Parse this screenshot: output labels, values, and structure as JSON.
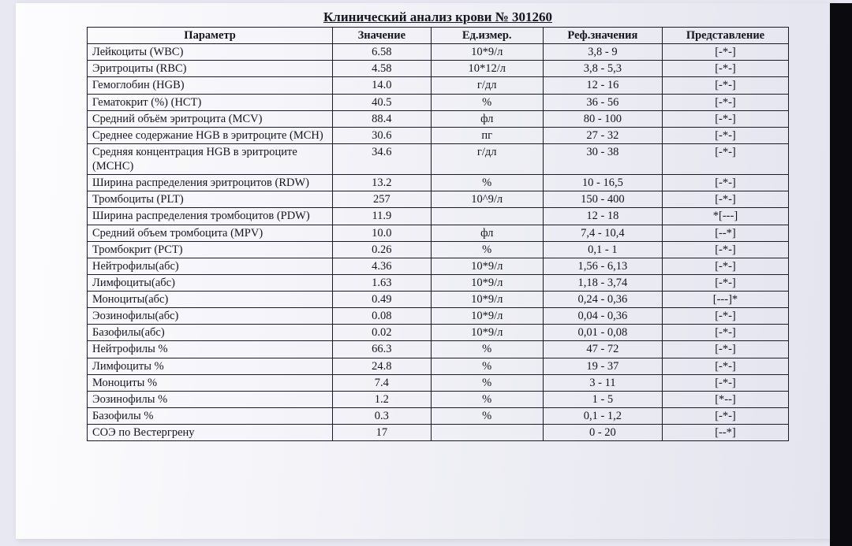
{
  "title": "Клинический анализ крови № 301260",
  "columns": {
    "param": "Параметр",
    "value": "Значение",
    "unit": "Ед.измер.",
    "ref": "Реф.значения",
    "rep": "Представление"
  },
  "rows": [
    {
      "param": "Лейкоциты (WBC)",
      "value": "6.58",
      "unit": "10*9/л",
      "ref": "3,8 - 9",
      "rep": "[-*-]"
    },
    {
      "param": "Эритроциты (RBC)",
      "value": "4.58",
      "unit": "10*12/л",
      "ref": "3,8 - 5,3",
      "rep": "[-*-]"
    },
    {
      "param": "Гемоглобин (HGB)",
      "value": "14.0",
      "unit": "г/дл",
      "ref": "12 - 16",
      "rep": "[-*-]"
    },
    {
      "param": "Гематокрит (%) (HCT)",
      "value": "40.5",
      "unit": "%",
      "ref": "36 - 56",
      "rep": "[-*-]"
    },
    {
      "param": "Средний объём эритроцита (MCV)",
      "value": "88.4",
      "unit": "фл",
      "ref": "80 - 100",
      "rep": "[-*-]"
    },
    {
      "param": "Среднее содержание HGB в эритроците (MCH)",
      "value": "30.6",
      "unit": "пг",
      "ref": "27 - 32",
      "rep": "[-*-]"
    },
    {
      "param": "Средняя концентрация HGB в эритроците (MCHC)",
      "value": "34.6",
      "unit": "г/дл",
      "ref": "30 - 38",
      "rep": "[-*-]"
    },
    {
      "param": "Ширина распределения эритроцитов (RDW)",
      "value": "13.2",
      "unit": "%",
      "ref": "10 - 16,5",
      "rep": "[-*-]"
    },
    {
      "param": "Тромбоциты (PLT)",
      "value": "257",
      "unit": "10^9/л",
      "ref": "150 - 400",
      "rep": "[-*-]"
    },
    {
      "param": "Ширина распределения тромбоцитов (PDW)",
      "value": "11.9",
      "unit": "",
      "ref": "12 - 18",
      "rep": "*[---]"
    },
    {
      "param": "Средний объем тромбоцита (MPV)",
      "value": "10.0",
      "unit": "фл",
      "ref": "7,4 - 10,4",
      "rep": "[--*]"
    },
    {
      "param": "Тромбокрит (PCT)",
      "value": "0.26",
      "unit": "%",
      "ref": "0,1 - 1",
      "rep": "[-*-]"
    },
    {
      "param": "Нейтрофилы(абс)",
      "value": "4.36",
      "unit": "10*9/л",
      "ref": "1,56 - 6,13",
      "rep": "[-*-]"
    },
    {
      "param": "Лимфоциты(абс)",
      "value": "1.63",
      "unit": "10*9/л",
      "ref": "1,18 - 3,74",
      "rep": "[-*-]"
    },
    {
      "param": "Моноциты(абс)",
      "value": "0.49",
      "unit": "10*9/л",
      "ref": "0,24 - 0,36",
      "rep": "[---]*"
    },
    {
      "param": "Эозинофилы(абс)",
      "value": "0.08",
      "unit": "10*9/л",
      "ref": "0,04 - 0,36",
      "rep": "[-*-]"
    },
    {
      "param": "Базофилы(абс)",
      "value": "0.02",
      "unit": "10*9/л",
      "ref": "0,01 - 0,08",
      "rep": "[-*-]"
    },
    {
      "param": "Нейтрофилы %",
      "value": "66.3",
      "unit": "%",
      "ref": "47 - 72",
      "rep": "[-*-]"
    },
    {
      "param": "Лимфоциты %",
      "value": "24.8",
      "unit": "%",
      "ref": "19 - 37",
      "rep": "[-*-]"
    },
    {
      "param": "Моноциты %",
      "value": "7.4",
      "unit": "%",
      "ref": "3 - 11",
      "rep": "[-*-]"
    },
    {
      "param": "Эозинофилы %",
      "value": "1.2",
      "unit": "%",
      "ref": "1 - 5",
      "rep": "[*--]"
    },
    {
      "param": "Базофилы %",
      "value": "0.3",
      "unit": "%",
      "ref": "0,1 - 1,2",
      "rep": "[-*-]"
    },
    {
      "param": "СОЭ по Вестергрену",
      "value": "17",
      "unit": "",
      "ref": "0 - 20",
      "rep": "[--*]"
    }
  ],
  "style": {
    "border_color": "#1a1a28",
    "text_color": "#15151f",
    "background_gradient": [
      "#fdfdff",
      "#f0f0f6",
      "#e4e4ef"
    ],
    "font_family": "Times New Roman",
    "title_fontsize_pt": 13,
    "cell_fontsize_pt": 11,
    "column_widths_pct": [
      35,
      14,
      16,
      17,
      18
    ]
  }
}
